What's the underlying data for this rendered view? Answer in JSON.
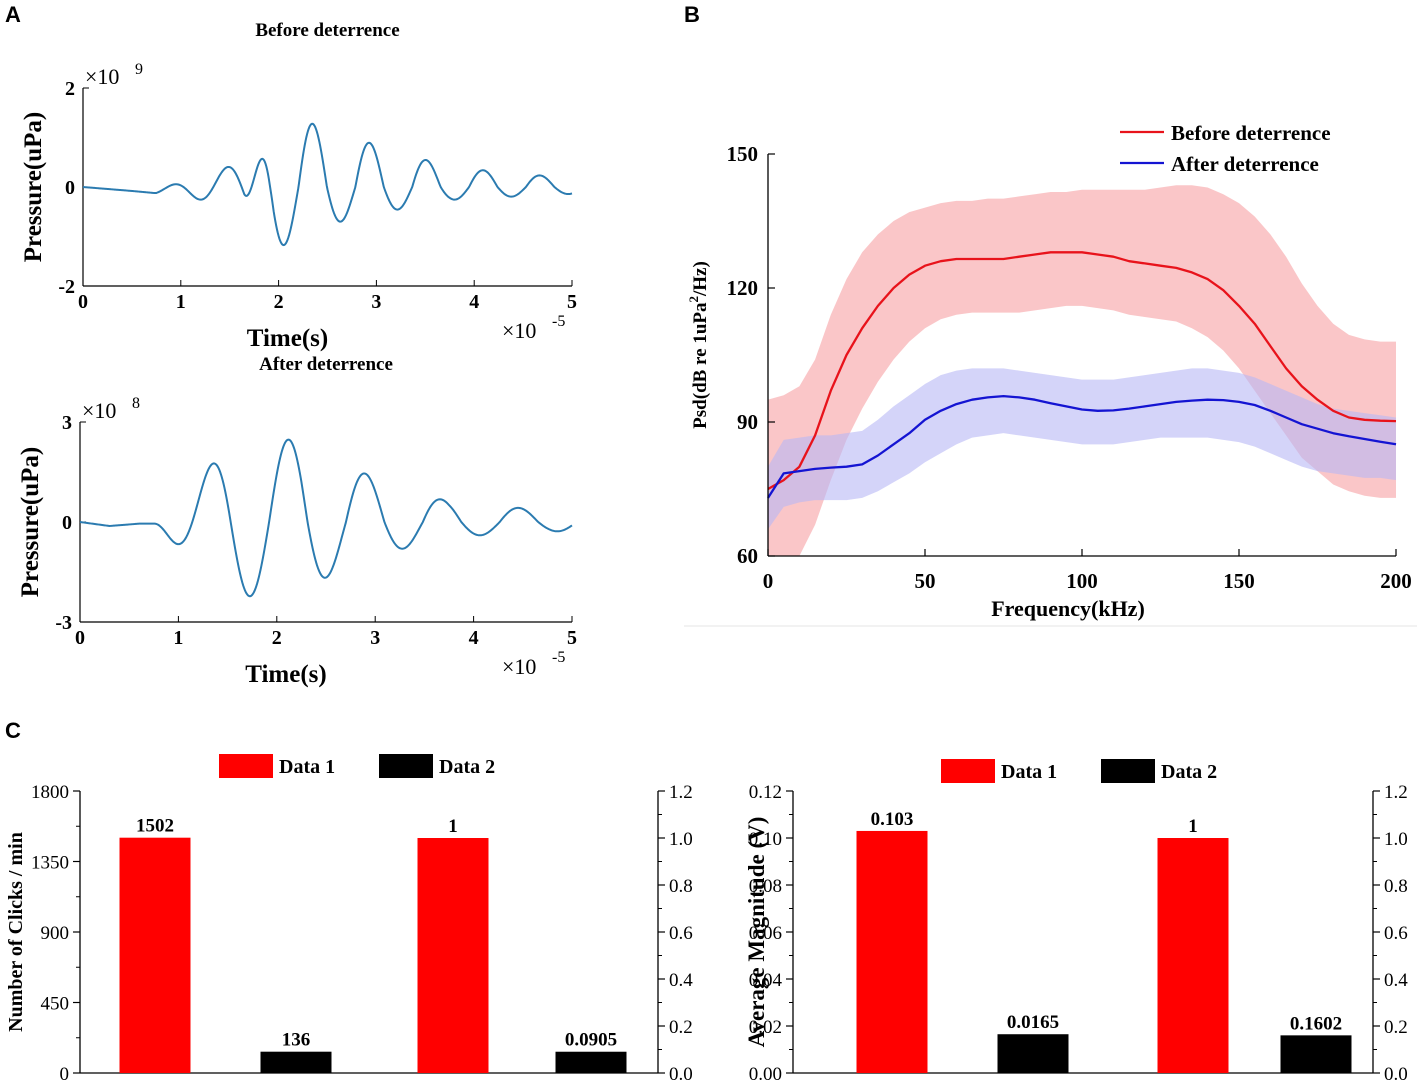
{
  "panels": {
    "a": "A",
    "b": "B",
    "c": "C"
  },
  "chart_data": [
    {
      "type": "line",
      "title": "Before deterrence",
      "xlabel": "Time(s)",
      "ylabel": "Pressure(uPa)",
      "x_multiplier": "×10",
      "x_exponent": "-5",
      "y_multiplier": "×10",
      "y_exponent": "9",
      "xlim": [
        0,
        5
      ],
      "ylim": [
        -2,
        2
      ],
      "xticks": [
        "0",
        "1",
        "2",
        "3",
        "4",
        "5"
      ],
      "yticks": [
        "-2",
        "0",
        "2"
      ],
      "color": "#2b7bb0",
      "signal": {
        "duration": 5,
        "start": 0.75,
        "freq": 1.72,
        "segments": [
          [
            0,
            0,
            1.0
          ],
          [
            0.9,
            -0.5,
            1.0
          ],
          [
            1.2,
            1.55,
            0.82
          ],
          [
            2.0,
            1.0,
            0.62
          ],
          [
            3.0,
            0.4,
            0.65
          ],
          [
            4.0,
            0.22,
            0.7
          ],
          [
            5,
            0.06,
            1.0
          ]
        ],
        "pre": [
          [
            0,
            0
          ],
          [
            0.5,
            -0.08
          ],
          [
            0.72,
            -0.12
          ]
        ]
      }
    },
    {
      "type": "line",
      "title": "After deterrence",
      "xlabel": "Time(s)",
      "ylabel": "Pressure(uPa)",
      "x_multiplier": "×10",
      "x_exponent": "-5",
      "y_multiplier": "×10",
      "y_exponent": "8",
      "xlim": [
        0,
        5
      ],
      "ylim": [
        -3,
        3
      ],
      "xticks": [
        "0",
        "1",
        "2",
        "3",
        "4",
        "5"
      ],
      "yticks": [
        "-3",
        "0",
        "3"
      ],
      "color": "#2b7bb0",
      "signal": {
        "duration": 5,
        "start": 0.75,
        "freq": 1.28,
        "segments": [
          [
            0,
            0,
            1.0
          ],
          [
            0.8,
            2.35,
            0.95
          ],
          [
            1.5,
            2.5,
            0.88
          ],
          [
            2.0,
            1.6,
            0.75
          ],
          [
            3.0,
            0.6,
            0.75
          ],
          [
            4.0,
            0.35,
            0.8
          ],
          [
            5,
            0.25,
            1.0
          ]
        ],
        "pre": [
          [
            0,
            0
          ],
          [
            0.3,
            -0.12
          ],
          [
            0.6,
            -0.05
          ]
        ]
      }
    },
    {
      "type": "line",
      "xlabel": "Frequency(kHz)",
      "ylabel_main": "Psd(dB re 1uPa",
      "ylabel_sup": "2",
      "ylabel_tail": "/Hz)",
      "xlim": [
        0,
        200
      ],
      "ylim": [
        60,
        150
      ],
      "xticks": [
        "0",
        "50",
        "100",
        "150",
        "200"
      ],
      "yticks": [
        "60",
        "90",
        "120",
        "150"
      ],
      "series": [
        {
          "name": "Before deterrence",
          "color": "#e8131b",
          "band_color": "#f7a0a3",
          "x": [
            0,
            5,
            10,
            15,
            20,
            25,
            30,
            35,
            40,
            45,
            50,
            55,
            60,
            65,
            70,
            75,
            80,
            85,
            90,
            95,
            100,
            105,
            110,
            115,
            120,
            125,
            130,
            135,
            140,
            145,
            150,
            155,
            160,
            165,
            170,
            175,
            180,
            185,
            190,
            195,
            200
          ],
          "mean": [
            75,
            77,
            80,
            87,
            97,
            105,
            111,
            116,
            120,
            123,
            125,
            126,
            126.5,
            126.5,
            126.5,
            126.5,
            127,
            127.5,
            128,
            128,
            128,
            127.5,
            127,
            126,
            125.5,
            125,
            124.5,
            123.5,
            122,
            119.5,
            116,
            112,
            107,
            102,
            98,
            95,
            92.5,
            91,
            90.5,
            90.3,
            90.2
          ],
          "lower": [
            55,
            57,
            60,
            67,
            77,
            86,
            93,
            99,
            104,
            108,
            111,
            113,
            114,
            114.5,
            114.5,
            114.5,
            114.5,
            115,
            115.5,
            116,
            116,
            115.5,
            115,
            114,
            113.5,
            113,
            112.5,
            111,
            109,
            106,
            102,
            97,
            92,
            87,
            82,
            79,
            76,
            74.5,
            73.5,
            73,
            73
          ],
          "upper": [
            95,
            96,
            98,
            104,
            114,
            122,
            128,
            132,
            135,
            137,
            138,
            139,
            139.5,
            139.5,
            140,
            140,
            140.5,
            141,
            141.5,
            141.5,
            142,
            142,
            142,
            142,
            142,
            142.5,
            143,
            143,
            142.5,
            141,
            139,
            136,
            132,
            127,
            121,
            116,
            112,
            109.5,
            108.5,
            108,
            108
          ]
        },
        {
          "name": "After deterrence",
          "color": "#1414d2",
          "band_color": "#b8b8f5",
          "x": [
            0,
            5,
            10,
            15,
            20,
            25,
            30,
            35,
            40,
            45,
            50,
            55,
            60,
            65,
            70,
            75,
            80,
            85,
            90,
            95,
            100,
            105,
            110,
            115,
            120,
            125,
            130,
            135,
            140,
            145,
            150,
            155,
            160,
            165,
            170,
            175,
            180,
            185,
            190,
            195,
            200
          ],
          "mean": [
            73,
            78.5,
            79,
            79.5,
            79.8,
            80,
            80.5,
            82.5,
            85,
            87.5,
            90.5,
            92.5,
            94,
            95,
            95.5,
            95.8,
            95.5,
            95,
            94.2,
            93.5,
            92.8,
            92.5,
            92.6,
            93,
            93.5,
            94,
            94.5,
            94.8,
            95,
            94.9,
            94.5,
            93.8,
            92.5,
            91,
            89.5,
            88.5,
            87.5,
            86.8,
            86.2,
            85.6,
            85
          ],
          "lower": [
            66,
            71,
            72,
            72.5,
            72.5,
            72.5,
            73,
            74.5,
            76.5,
            78.5,
            81,
            83,
            85,
            86.5,
            87,
            87.5,
            87,
            86.5,
            86,
            85.5,
            85,
            85,
            85,
            85.5,
            86,
            86.5,
            86.5,
            86.5,
            86.5,
            86,
            85.5,
            84.5,
            83,
            81.5,
            80,
            79,
            78.5,
            78,
            77.5,
            77.5,
            77
          ],
          "upper": [
            80,
            86,
            86.5,
            87,
            87,
            87.5,
            88,
            90.5,
            93.5,
            96,
            98.5,
            100.5,
            101.5,
            102,
            102,
            102,
            101.5,
            101,
            100.5,
            100,
            99.5,
            99.5,
            99.5,
            100,
            100.5,
            101,
            101.5,
            102,
            102,
            101.5,
            101,
            100,
            98.5,
            97,
            95.5,
            94,
            93,
            92.5,
            92,
            91.5,
            91
          ]
        }
      ]
    },
    {
      "type": "bar",
      "legend": [
        "Data 1",
        "Data 2"
      ],
      "colors": [
        "#ff0000",
        "#000000"
      ],
      "ylabel": "Number of Clicks / min",
      "left_axis": {
        "ylim": [
          0,
          1800
        ],
        "ticks": [
          "0",
          "450",
          "900",
          "1350",
          "1800"
        ]
      },
      "right_axis": {
        "ylim": [
          0,
          1.2
        ],
        "ticks": [
          "0.0",
          "0.2",
          "0.4",
          "0.6",
          "0.8",
          "1.0",
          "1.2"
        ]
      },
      "groups": [
        {
          "axis": "left",
          "values": [
            1502,
            136
          ],
          "labels": [
            "1502",
            "136"
          ]
        },
        {
          "axis": "right",
          "values": [
            1,
            0.0905
          ],
          "labels": [
            "1",
            "0.0905"
          ]
        }
      ]
    },
    {
      "type": "bar",
      "legend": [
        "Data 1",
        "Data 2"
      ],
      "colors": [
        "#ff0000",
        "#000000"
      ],
      "ylabel": "Average Magnitude (V)",
      "left_axis": {
        "ylim": [
          0,
          0.12
        ],
        "ticks": [
          "0.00",
          "0.02",
          "0.04",
          "0.06",
          "0.08",
          "0.10",
          "0.12"
        ]
      },
      "right_axis": {
        "ylim": [
          0,
          1.2
        ],
        "ticks": [
          "0.0",
          "0.2",
          "0.4",
          "0.6",
          "0.8",
          "1.0",
          "1.2"
        ]
      },
      "groups": [
        {
          "axis": "left",
          "values": [
            0.103,
            0.0165
          ],
          "labels": [
            "0.103",
            "0.0165"
          ]
        },
        {
          "axis": "right",
          "values": [
            1,
            0.1602
          ],
          "labels": [
            "1",
            "0.1602"
          ]
        }
      ]
    }
  ]
}
